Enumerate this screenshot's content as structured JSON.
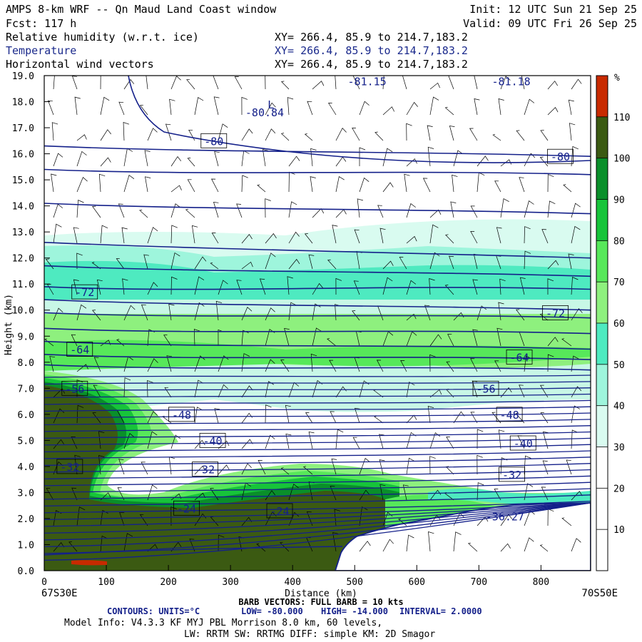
{
  "header": {
    "title": "AMPS 8-km WRF -- Qn Maud Land Coast window",
    "forecast": "Fcst:  117 h",
    "init": "Init: 12 UTC Sun 21 Sep 25",
    "valid": "Valid: 09 UTC Fri 26 Sep 25",
    "fields": [
      {
        "name": "Relative humidity (w.r.t. ice)",
        "xy": "XY= 266.4, 85.9 to 214.7,183.2",
        "color": "#000000"
      },
      {
        "name": "Temperature",
        "xy": "XY= 266.4, 85.9 to 214.7,183.2",
        "color": "#1b2a8c"
      },
      {
        "name": "Horizontal wind vectors",
        "xy": "XY= 266.4, 85.9 to 214.7,183.2",
        "color": "#000000"
      }
    ]
  },
  "chart_data": {
    "type": "heatmap",
    "xlabel": "Distance (km)",
    "ylabel": "Height (km)",
    "xlim": [
      0,
      880
    ],
    "ylim": [
      0,
      19
    ],
    "x_ticks": [
      0,
      100,
      200,
      300,
      400,
      500,
      600,
      700,
      800
    ],
    "y_ticks": [
      "0.0",
      "1.0",
      "2.0",
      "3.0",
      "4.0",
      "5.0",
      "6.0",
      "7.0",
      "8.0",
      "9.0",
      "10.0",
      "11.0",
      "12.0",
      "13.0",
      "14.0",
      "15.0",
      "16.0",
      "17.0",
      "18.0",
      "19.0"
    ],
    "x_start_label": "67S30E",
    "x_end_label": "70S50E",
    "colorbar": {
      "unit": "%",
      "levels": [
        10,
        20,
        30,
        40,
        50,
        60,
        70,
        80,
        90,
        100,
        110
      ],
      "colors": [
        "#ffffff",
        "#ffffff",
        "#ffffff",
        "#d9fbf0",
        "#9ef5dc",
        "#4eeac0",
        "#8ef07e",
        "#57e85a",
        "#17c43a",
        "#0a8f2a",
        "#3b5a12",
        "#c82a00"
      ]
    },
    "temperature_contours": {
      "units": "°C",
      "low": -80.0,
      "high": -14.0,
      "interval": 2.0,
      "color": "#14208a",
      "labels": [
        {
          "text": "-80",
          "x": 272,
          "y": 16.5
        },
        {
          "text": "-80",
          "x": 830,
          "y": 15.9
        },
        {
          "text": "-72",
          "x": 64,
          "y": 10.7
        },
        {
          "text": "-72",
          "x": 822,
          "y": 9.9
        },
        {
          "text": "-64",
          "x": 56,
          "y": 8.5
        },
        {
          "text": "-64",
          "x": 764,
          "y": 8.2
        },
        {
          "text": "-56",
          "x": 48,
          "y": 7.0
        },
        {
          "text": "-56",
          "x": 710,
          "y": 7.0
        },
        {
          "text": "-48",
          "x": 220,
          "y": 6.0
        },
        {
          "text": "-48",
          "x": 748,
          "y": 6.0
        },
        {
          "text": "-40",
          "x": 270,
          "y": 5.0
        },
        {
          "text": "-40",
          "x": 770,
          "y": 4.9
        },
        {
          "text": "-32",
          "x": 40,
          "y": 4.0
        },
        {
          "text": "-32",
          "x": 258,
          "y": 3.9
        },
        {
          "text": "-32",
          "x": 752,
          "y": 3.7
        },
        {
          "text": "-24",
          "x": 228,
          "y": 2.4
        },
        {
          "text": "-24",
          "x": 378,
          "y": 2.3
        }
      ],
      "extrema": [
        {
          "text": "-81.15",
          "x": 520,
          "y": 18.8
        },
        {
          "text": "-81.18",
          "x": 752,
          "y": 18.8
        },
        {
          "text": "-80.84",
          "x": 355,
          "y": 17.6
        },
        {
          "text": "L",
          "x": 365,
          "y": 17.9
        },
        {
          "text": "-36.27",
          "x": 742,
          "y": 2.1
        }
      ]
    },
    "barb_note": "BARB VECTORS:  FULL BARB = 10 kts"
  },
  "footer": {
    "contours": {
      "label": "CONTOURS:  UNITS=°C",
      "low": "LOW= -80.000",
      "high": "HIGH= -14.000",
      "interval": "INTERVAL=   2.0000",
      "color": "#14208a"
    },
    "model_line1": "Model Info: V4.3.3   KF      MYJ PBL  Morrison          8.0 km,  60 levels,",
    "model_line2": "LW: RRTM SW: RRTMG   DIFF: simple KM: 2D Smagor"
  }
}
